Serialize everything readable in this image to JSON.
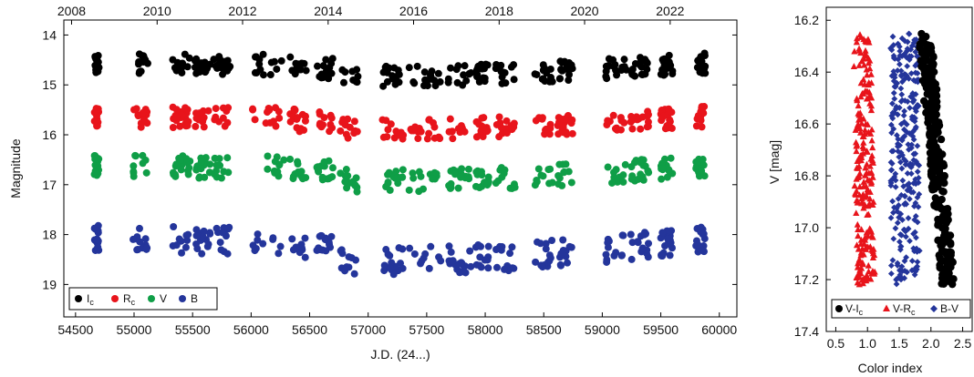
{
  "chart_data": [
    {
      "type": "scatter",
      "title": "",
      "xlabel": "J.D. (24...)",
      "ylabel": "Magnitude",
      "xlim": [
        54400,
        60150
      ],
      "ylim": [
        19.65,
        13.7
      ],
      "y_inverted": true,
      "x_ticks": [
        54500,
        55000,
        55500,
        56000,
        56500,
        57000,
        57500,
        58000,
        58500,
        59000,
        59500,
        60000
      ],
      "y_ticks": [
        14,
        15,
        16,
        17,
        18,
        19
      ],
      "top_axis_label": "",
      "top_ticks": [
        2008,
        2010,
        2012,
        2014,
        2016,
        2018,
        2020,
        2022
      ],
      "top_tick_jd": [
        54466,
        55197,
        55927,
        56658,
        57388,
        58119,
        58849,
        59580
      ],
      "legend_position": "bottom-left",
      "series": [
        {
          "name": "Ic",
          "label_main": "I",
          "label_sub": "c",
          "color": "#000000",
          "marker": "circle",
          "base": 14.55,
          "scatter": 0.42,
          "trend": 0.25
        },
        {
          "name": "Rc",
          "label_main": "R",
          "label_sub": "c",
          "color": "#e8141b",
          "marker": "circle",
          "base": 15.62,
          "scatter": 0.42,
          "trend": 0.25
        },
        {
          "name": "V",
          "label_main": "V",
          "label_sub": "",
          "color": "#0f9e47",
          "marker": "circle",
          "base": 16.6,
          "scatter": 0.45,
          "trend": 0.3
        },
        {
          "name": "B",
          "label_main": "B",
          "label_sub": "",
          "color": "#24359b",
          "marker": "circle",
          "base": 18.05,
          "scatter": 0.55,
          "trend": 0.45
        }
      ],
      "observing_seasons_jd": [
        [
          54660,
          54700
        ],
        [
          54990,
          55120
        ],
        [
          55330,
          55480
        ],
        [
          55520,
          55650
        ],
        [
          55680,
          55820
        ],
        [
          56010,
          56280
        ],
        [
          56330,
          56480
        ],
        [
          56560,
          56700
        ],
        [
          56760,
          56920
        ],
        [
          57120,
          57300
        ],
        [
          57350,
          57620
        ],
        [
          57680,
          57880
        ],
        [
          57920,
          58030
        ],
        [
          58080,
          58260
        ],
        [
          58420,
          58580
        ],
        [
          58620,
          58750
        ],
        [
          59030,
          59210
        ],
        [
          59230,
          59400
        ],
        [
          59500,
          59600
        ],
        [
          59800,
          59880
        ]
      ]
    },
    {
      "type": "scatter",
      "title": "",
      "xlabel": "Color index",
      "ylabel": "V [mag]",
      "xlim": [
        0.35,
        2.65
      ],
      "ylim": [
        17.4,
        16.15
      ],
      "y_inverted": true,
      "x_ticks": [
        0.5,
        1.0,
        1.5,
        2.0,
        2.5
      ],
      "x_tick_labels": [
        "0.5",
        "1.0",
        "1.5",
        "2.0",
        "2.5"
      ],
      "y_ticks": [
        16.2,
        16.4,
        16.6,
        16.8,
        17.0,
        17.2,
        17.4
      ],
      "y_tick_labels": [
        "16.2",
        "16.4",
        "16.6",
        "16.8",
        "17.0",
        "17.2",
        "17.4"
      ],
      "legend_position": "bottom",
      "series": [
        {
          "name": "V-Ic",
          "label_main": "V-I",
          "label_sub": "c",
          "color": "#000000",
          "marker": "circle",
          "points": [
            [
              1.95,
              16.25
            ],
            [
              2.05,
              16.25
            ],
            [
              2.0,
              16.35
            ],
            [
              2.05,
              16.4
            ],
            [
              2.1,
              16.45
            ],
            [
              2.0,
              16.5
            ],
            [
              2.1,
              16.55
            ],
            [
              2.15,
              16.6
            ],
            [
              2.1,
              16.7
            ],
            [
              2.2,
              16.75
            ],
            [
              2.2,
              16.85
            ],
            [
              2.25,
              16.95
            ],
            [
              2.2,
              17.0
            ],
            [
              2.3,
              17.05
            ],
            [
              2.3,
              17.1
            ],
            [
              2.3,
              17.2
            ],
            [
              2.3,
              17.25
            ]
          ]
        },
        {
          "name": "V-Rc",
          "label_main": "V-R",
          "label_sub": "c",
          "color": "#e8141b",
          "marker": "triangle",
          "points": [
            [
              0.8,
              16.3
            ],
            [
              0.9,
              16.25
            ],
            [
              1.0,
              16.3
            ],
            [
              0.85,
              16.45
            ],
            [
              0.95,
              16.55
            ],
            [
              1.0,
              16.65
            ],
            [
              0.9,
              16.75
            ],
            [
              1.0,
              16.85
            ],
            [
              1.05,
              16.95
            ],
            [
              0.95,
              17.05
            ],
            [
              1.1,
              17.1
            ],
            [
              1.0,
              17.2
            ],
            [
              1.2,
              17.15
            ],
            [
              0.85,
              17.2
            ]
          ]
        },
        {
          "name": "B-V",
          "label_main": "B-V",
          "label_sub": "",
          "color": "#24359b",
          "marker": "diamond",
          "points": [
            [
              1.55,
              16.25
            ],
            [
              1.75,
              16.25
            ],
            [
              1.45,
              16.35
            ],
            [
              1.65,
              16.4
            ],
            [
              1.5,
              16.5
            ],
            [
              1.7,
              16.55
            ],
            [
              1.4,
              16.6
            ],
            [
              1.6,
              16.65
            ],
            [
              1.55,
              16.75
            ],
            [
              1.75,
              16.8
            ],
            [
              1.45,
              16.9
            ],
            [
              1.65,
              16.95
            ],
            [
              1.5,
              17.05
            ],
            [
              1.7,
              17.1
            ],
            [
              1.6,
              17.15
            ],
            [
              1.65,
              17.25
            ]
          ]
        }
      ]
    }
  ]
}
